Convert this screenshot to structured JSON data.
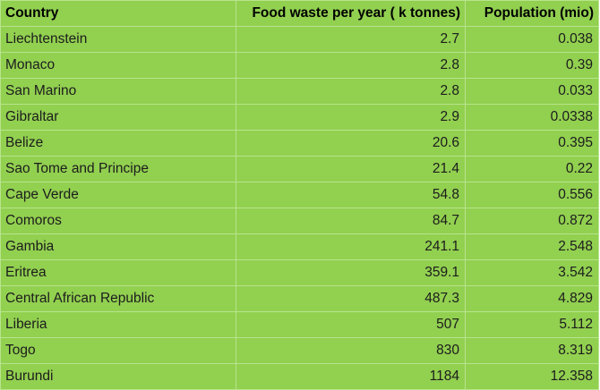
{
  "table": {
    "headers": {
      "country": "Country",
      "food_waste": "Food waste per year ( k tonnes)",
      "population": "Population (mio)"
    },
    "rows": [
      {
        "country": "Liechtenstein",
        "food_waste": "2.7",
        "population": "0.038"
      },
      {
        "country": "Monaco",
        "food_waste": "2.8",
        "population": "0.39"
      },
      {
        "country": "San Marino",
        "food_waste": "2.8",
        "population": "0.033"
      },
      {
        "country": "Gibraltar",
        "food_waste": "2.9",
        "population": "0.0338"
      },
      {
        "country": "Belize",
        "food_waste": "20.6",
        "population": "0.395"
      },
      {
        "country": "Sao Tome and Principe",
        "food_waste": "21.4",
        "population": "0.22"
      },
      {
        "country": "Cape Verde",
        "food_waste": "54.8",
        "population": "0.556"
      },
      {
        "country": "Comoros",
        "food_waste": "84.7",
        "population": "0.872"
      },
      {
        "country": "Gambia",
        "food_waste": "241.1",
        "population": "2.548"
      },
      {
        "country": "Eritrea",
        "food_waste": "359.1",
        "population": "3.542"
      },
      {
        "country": "Central African Republic",
        "food_waste": "487.3",
        "population": "4.829"
      },
      {
        "country": "Liberia",
        "food_waste": "507",
        "population": "5.112"
      },
      {
        "country": "Togo",
        "food_waste": "830",
        "population": "8.319"
      },
      {
        "country": "Burundi",
        "food_waste": "1184",
        "population": "12.358"
      }
    ]
  },
  "colors": {
    "cell_background": "#92d050",
    "grid_line": "#b8e48c"
  }
}
